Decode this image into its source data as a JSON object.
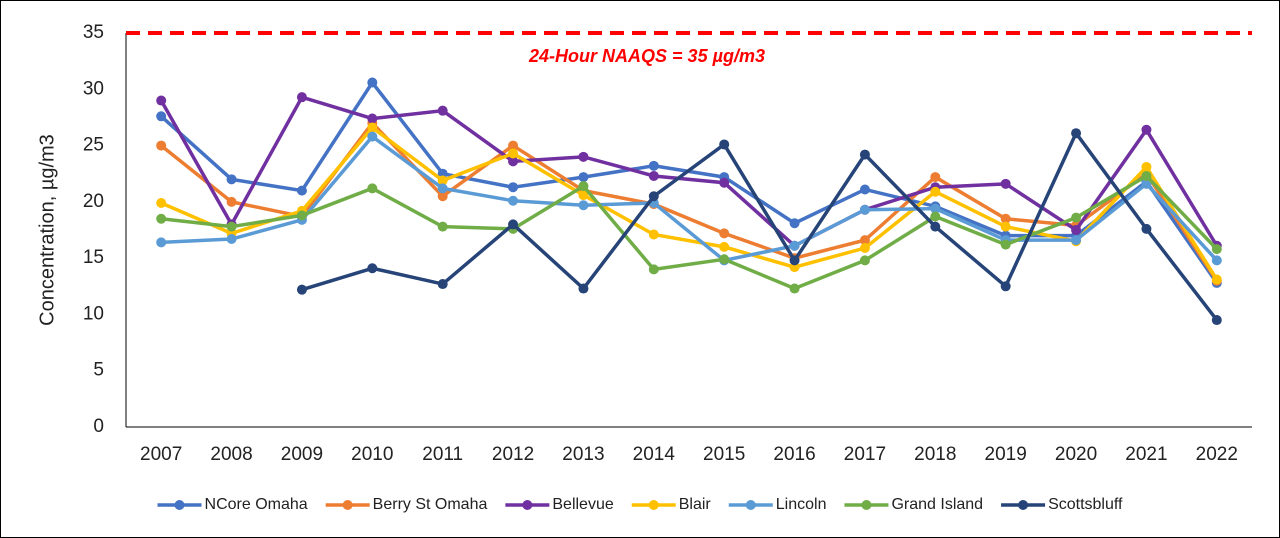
{
  "chart_data": {
    "type": "line",
    "y_label": "Concentration, µg/m3",
    "categories": [
      "2007",
      "2008",
      "2009",
      "2010",
      "2011",
      "2012",
      "2013",
      "2014",
      "2015",
      "2016",
      "2017",
      "2018",
      "2019",
      "2020",
      "2021",
      "2022"
    ],
    "series": [
      {
        "name": "NCore Omaha",
        "color": "#4472c4",
        "values": [
          27.6,
          22.0,
          21.0,
          30.6,
          22.5,
          21.3,
          22.2,
          23.2,
          22.2,
          18.1,
          21.1,
          19.6,
          17.0,
          17.0,
          21.8,
          12.8
        ]
      },
      {
        "name": "Berry St Omaha",
        "color": "#ed7d31",
        "values": [
          25.0,
          20.0,
          18.7,
          27.0,
          20.5,
          25.0,
          21.0,
          19.8,
          17.2,
          15.0,
          16.6,
          22.2,
          18.5,
          17.9,
          22.5,
          13.0
        ]
      },
      {
        "name": "Bellevue",
        "color": "#7030a0",
        "values": [
          29.0,
          18.0,
          29.3,
          27.4,
          28.1,
          23.6,
          24.0,
          22.3,
          21.7,
          16.1,
          19.3,
          21.3,
          21.6,
          17.5,
          26.4,
          16.1
        ]
      },
      {
        "name": "Blair",
        "color": "#ffc000",
        "values": [
          19.9,
          17.2,
          19.2,
          26.6,
          21.9,
          24.3,
          20.6,
          17.1,
          16.0,
          14.2,
          15.9,
          20.9,
          17.8,
          16.5,
          23.1,
          13.1
        ]
      },
      {
        "name": "Lincoln",
        "color": "#5b9bd5",
        "values": [
          16.4,
          16.7,
          18.4,
          25.8,
          21.2,
          20.1,
          19.7,
          19.9,
          14.8,
          16.1,
          19.3,
          19.4,
          16.6,
          16.6,
          21.6,
          14.8
        ]
      },
      {
        "name": "Grand Island",
        "color": "#70ad47",
        "values": [
          18.5,
          17.8,
          18.8,
          21.2,
          17.8,
          17.6,
          21.4,
          14.0,
          14.9,
          12.3,
          14.8,
          18.7,
          16.2,
          18.6,
          22.3,
          15.8
        ]
      },
      {
        "name": "Scottsbluff",
        "color": "#264478",
        "values": [
          null,
          null,
          12.2,
          14.1,
          12.7,
          18.0,
          12.3,
          20.5,
          25.1,
          14.8,
          24.2,
          17.8,
          12.5,
          26.1,
          17.6,
          9.5
        ]
      }
    ],
    "reference_line": {
      "value": 35,
      "label": "24-Hour NAAQS = 35 µg/m3",
      "color": "#ff0000"
    },
    "ylim": [
      0,
      35
    ],
    "yticks": [
      0,
      5,
      10,
      15,
      20,
      25,
      30,
      35
    ],
    "grid": false,
    "legend": "bottom"
  }
}
